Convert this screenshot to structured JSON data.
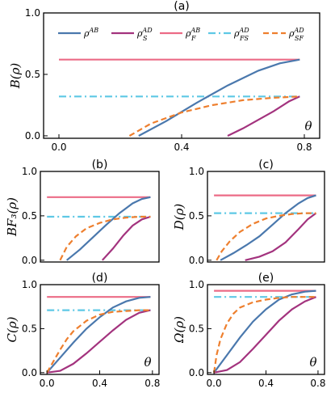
{
  "chart_data": [
    {
      "id": "a",
      "type": "line",
      "title": "(a)",
      "ylabel": "B(ρ)",
      "inner_label": "θ",
      "xlim": [
        -0.05,
        0.85
      ],
      "ylim": [
        -0.02,
        1.0
      ],
      "xticks": [
        0.0,
        0.4,
        0.8
      ],
      "xticklabels": [
        "0.0",
        "0.4",
        "0.8"
      ],
      "yticks": [
        0.0,
        0.5,
        1.0
      ],
      "yticklabels": [
        "0.0",
        "0.5",
        "1.0"
      ],
      "legend": {
        "placement": "top",
        "entries": [
          {
            "base": "ρ",
            "sup": "AB",
            "sub": "",
            "color": "#4a78ad",
            "dash": "solid"
          },
          {
            "base": "ρ",
            "sup": "AD",
            "sub": "S",
            "color": "#a3337e",
            "dash": "solid"
          },
          {
            "base": "ρ",
            "sup": "AB",
            "sub": "F",
            "color": "#ec6b86",
            "dash": "solid"
          },
          {
            "base": "ρ",
            "sup": "AD",
            "sub": "FS",
            "color": "#5ec8e5",
            "dash": "dashdot"
          },
          {
            "base": "ρ",
            "sup": "AD",
            "sub": "SF",
            "color": "#ee7f2e",
            "dash": "dashed"
          }
        ]
      },
      "series": [
        {
          "color": "#ec6b86",
          "dash": "solid",
          "x": [
            0.0,
            0.785
          ],
          "y": [
            0.62,
            0.62
          ]
        },
        {
          "color": "#5ec8e5",
          "dash": "dashdot",
          "x": [
            0.0,
            0.785
          ],
          "y": [
            0.32,
            0.32
          ]
        },
        {
          "color": "#4a78ad",
          "dash": "solid",
          "x": [
            0.26,
            0.35,
            0.45,
            0.55,
            0.65,
            0.72,
            0.785
          ],
          "y": [
            0.0,
            0.12,
            0.27,
            0.41,
            0.53,
            0.59,
            0.62
          ]
        },
        {
          "color": "#a3337e",
          "dash": "solid",
          "x": [
            0.55,
            0.6,
            0.65,
            0.7,
            0.75,
            0.785
          ],
          "y": [
            0.0,
            0.06,
            0.13,
            0.2,
            0.28,
            0.32
          ]
        },
        {
          "color": "#ee7f2e",
          "dash": "dashed",
          "x": [
            0.23,
            0.3,
            0.4,
            0.5,
            0.6,
            0.7,
            0.785
          ],
          "y": [
            0.0,
            0.1,
            0.19,
            0.25,
            0.29,
            0.31,
            0.32
          ]
        }
      ]
    },
    {
      "id": "b",
      "type": "line",
      "title": "(b)",
      "ylabel": "BF₃(ρ)",
      "inner_label": "",
      "xlim": [
        -0.05,
        0.85
      ],
      "ylim": [
        -0.02,
        1.0
      ],
      "xticks": [],
      "xticklabels": [],
      "yticks": [
        0.0,
        0.5,
        1.0
      ],
      "yticklabels": [
        "0.0",
        "0.5",
        "1.0"
      ],
      "series": [
        {
          "color": "#ec6b86",
          "dash": "solid",
          "x": [
            0.0,
            0.785
          ],
          "y": [
            0.71,
            0.71
          ]
        },
        {
          "color": "#5ec8e5",
          "dash": "dashdot",
          "x": [
            0.0,
            0.785
          ],
          "y": [
            0.49,
            0.49
          ]
        },
        {
          "color": "#4a78ad",
          "dash": "solid",
          "x": [
            0.15,
            0.25,
            0.35,
            0.45,
            0.55,
            0.65,
            0.72,
            0.785
          ],
          "y": [
            0.0,
            0.12,
            0.26,
            0.4,
            0.53,
            0.64,
            0.69,
            0.71
          ]
        },
        {
          "color": "#a3337e",
          "dash": "solid",
          "x": [
            0.42,
            0.5,
            0.58,
            0.65,
            0.72,
            0.785
          ],
          "y": [
            0.0,
            0.13,
            0.28,
            0.39,
            0.46,
            0.49
          ]
        },
        {
          "color": "#ee7f2e",
          "dash": "dashed",
          "x": [
            0.1,
            0.15,
            0.22,
            0.3,
            0.4,
            0.5,
            0.6,
            0.7,
            0.785
          ],
          "y": [
            0.0,
            0.15,
            0.27,
            0.36,
            0.42,
            0.46,
            0.48,
            0.49,
            0.49
          ]
        }
      ]
    },
    {
      "id": "c",
      "type": "line",
      "title": "(c)",
      "ylabel": "D(ρ)",
      "inner_label": "",
      "xlim": [
        -0.05,
        0.85
      ],
      "ylim": [
        -0.02,
        1.0
      ],
      "xticks": [],
      "xticklabels": [],
      "yticks": [
        0.0,
        0.5,
        1.0
      ],
      "yticklabels": [
        "0.0",
        "0.5",
        "1.0"
      ],
      "series": [
        {
          "color": "#ec6b86",
          "dash": "solid",
          "x": [
            0.0,
            0.785
          ],
          "y": [
            0.73,
            0.73
          ]
        },
        {
          "color": "#5ec8e5",
          "dash": "dashdot",
          "x": [
            0.0,
            0.785
          ],
          "y": [
            0.53,
            0.53
          ]
        },
        {
          "color": "#4a78ad",
          "dash": "solid",
          "x": [
            0.05,
            0.15,
            0.25,
            0.35,
            0.45,
            0.55,
            0.65,
            0.72,
            0.785
          ],
          "y": [
            0.0,
            0.08,
            0.17,
            0.27,
            0.4,
            0.53,
            0.64,
            0.7,
            0.73
          ]
        },
        {
          "color": "#a3337e",
          "dash": "solid",
          "x": [
            0.24,
            0.35,
            0.45,
            0.55,
            0.65,
            0.72,
            0.785
          ],
          "y": [
            0.0,
            0.04,
            0.1,
            0.2,
            0.35,
            0.46,
            0.53
          ]
        },
        {
          "color": "#ee7f2e",
          "dash": "dashed",
          "x": [
            0.02,
            0.06,
            0.12,
            0.2,
            0.3,
            0.4,
            0.5,
            0.6,
            0.7,
            0.785
          ],
          "y": [
            0.0,
            0.1,
            0.21,
            0.32,
            0.41,
            0.47,
            0.5,
            0.52,
            0.53,
            0.53
          ]
        }
      ]
    },
    {
      "id": "d",
      "type": "line",
      "title": "(d)",
      "ylabel": "C(ρ)",
      "inner_label": "θ",
      "xlim": [
        -0.05,
        0.85
      ],
      "ylim": [
        -0.02,
        1.0
      ],
      "xticks": [
        0.0,
        0.4,
        0.8
      ],
      "xticklabels": [
        "0.0",
        "0.4",
        "0.8"
      ],
      "yticks": [
        0.0,
        0.5,
        1.0
      ],
      "yticklabels": [
        "0.0",
        "0.5",
        "1.0"
      ],
      "series": [
        {
          "color": "#ec6b86",
          "dash": "solid",
          "x": [
            0.0,
            0.785
          ],
          "y": [
            0.86,
            0.86
          ]
        },
        {
          "color": "#5ec8e5",
          "dash": "dashdot",
          "x": [
            0.0,
            0.785
          ],
          "y": [
            0.71,
            0.71
          ]
        },
        {
          "color": "#4a78ad",
          "dash": "solid",
          "x": [
            0.0,
            0.1,
            0.2,
            0.3,
            0.4,
            0.5,
            0.6,
            0.7,
            0.785
          ],
          "y": [
            0.0,
            0.17,
            0.34,
            0.5,
            0.63,
            0.74,
            0.81,
            0.85,
            0.86
          ]
        },
        {
          "color": "#a3337e",
          "dash": "solid",
          "x": [
            0.0,
            0.1,
            0.2,
            0.3,
            0.4,
            0.5,
            0.6,
            0.7,
            0.785
          ],
          "y": [
            0.0,
            0.02,
            0.1,
            0.22,
            0.35,
            0.48,
            0.6,
            0.68,
            0.71
          ]
        },
        {
          "color": "#ee7f2e",
          "dash": "dashed",
          "x": [
            0.0,
            0.05,
            0.1,
            0.15,
            0.2,
            0.3,
            0.4,
            0.5,
            0.6,
            0.7,
            0.785
          ],
          "y": [
            0.0,
            0.13,
            0.26,
            0.38,
            0.47,
            0.59,
            0.66,
            0.69,
            0.7,
            0.71,
            0.71
          ]
        }
      ]
    },
    {
      "id": "e",
      "type": "line",
      "title": "(e)",
      "ylabel": "Ω(ρ)",
      "inner_label": "θ",
      "xlim": [
        -0.05,
        0.85
      ],
      "ylim": [
        -0.02,
        1.0
      ],
      "xticks": [
        0.0,
        0.4,
        0.8
      ],
      "xticklabels": [
        "0.0",
        "0.4",
        "0.8"
      ],
      "yticks": [
        0.0,
        0.5,
        1.0
      ],
      "yticklabels": [
        "0.0",
        "0.5",
        "1.0"
      ],
      "series": [
        {
          "color": "#ec6b86",
          "dash": "solid",
          "x": [
            0.0,
            0.785
          ],
          "y": [
            0.93,
            0.93
          ]
        },
        {
          "color": "#5ec8e5",
          "dash": "dashdot",
          "x": [
            0.0,
            0.785
          ],
          "y": [
            0.86,
            0.86
          ]
        },
        {
          "color": "#4a78ad",
          "dash": "solid",
          "x": [
            0.0,
            0.1,
            0.2,
            0.3,
            0.4,
            0.5,
            0.6,
            0.7,
            0.785
          ],
          "y": [
            0.0,
            0.2,
            0.4,
            0.58,
            0.72,
            0.83,
            0.89,
            0.92,
            0.93
          ]
        },
        {
          "color": "#a3337e",
          "dash": "solid",
          "x": [
            0.0,
            0.1,
            0.2,
            0.3,
            0.4,
            0.5,
            0.6,
            0.7,
            0.785
          ],
          "y": [
            0.0,
            0.03,
            0.12,
            0.27,
            0.43,
            0.59,
            0.72,
            0.81,
            0.86
          ]
        },
        {
          "color": "#ee7f2e",
          "dash": "dashed",
          "x": [
            0.0,
            0.02,
            0.05,
            0.1,
            0.15,
            0.2,
            0.3,
            0.4,
            0.5,
            0.6,
            0.7,
            0.785
          ],
          "y": [
            0.0,
            0.2,
            0.38,
            0.56,
            0.67,
            0.74,
            0.8,
            0.83,
            0.85,
            0.86,
            0.86,
            0.86
          ]
        }
      ]
    }
  ]
}
